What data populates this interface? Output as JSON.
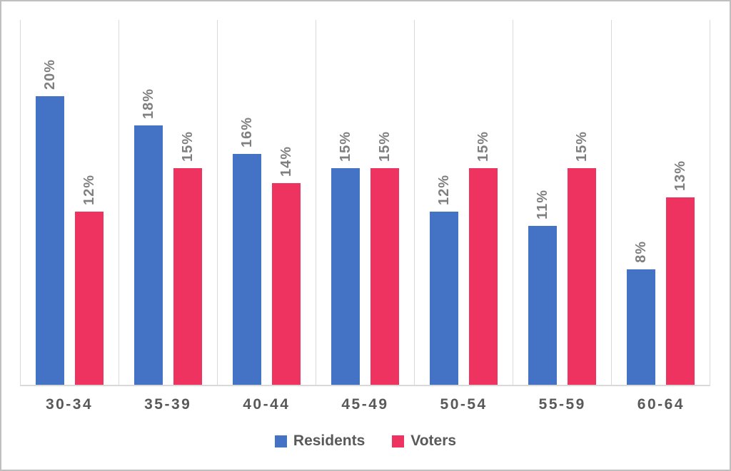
{
  "chart_data": {
    "type": "bar",
    "title": "",
    "xlabel": "",
    "ylabel": "",
    "categories": [
      "30-34",
      "35-39",
      "40-44",
      "45-49",
      "50-54",
      "55-59",
      "60-64"
    ],
    "series": [
      {
        "name": "Residents",
        "color": "#4472C4",
        "values": [
          20,
          18,
          16,
          15,
          12,
          11,
          8
        ],
        "labels": [
          "20%",
          "18%",
          "16%",
          "15%",
          "12%",
          "11%",
          "8%"
        ]
      },
      {
        "name": "Voters",
        "color": "#EE3360",
        "values": [
          12,
          15,
          14,
          15,
          15,
          15,
          13
        ],
        "labels": [
          "12%",
          "15%",
          "14%",
          "15%",
          "15%",
          "15%",
          "13%"
        ]
      }
    ],
    "ylim": [
      0,
      25.3
    ],
    "grid": "vertical-category-separators-only",
    "y_axis_visible": false,
    "value_label_rotation": -90,
    "legend_position": "bottom-center"
  },
  "colors": {
    "residents_bar": "#4472C4",
    "voters_bar": "#EE3360",
    "gridline": "#D9D9D9",
    "axis_line": "#D9D9D9",
    "value_label_text": "#7F7F7F",
    "category_label_text": "#595959",
    "legend_text": "#595959",
    "outer_border": "#BFBFBF",
    "background": "#FFFFFF"
  }
}
